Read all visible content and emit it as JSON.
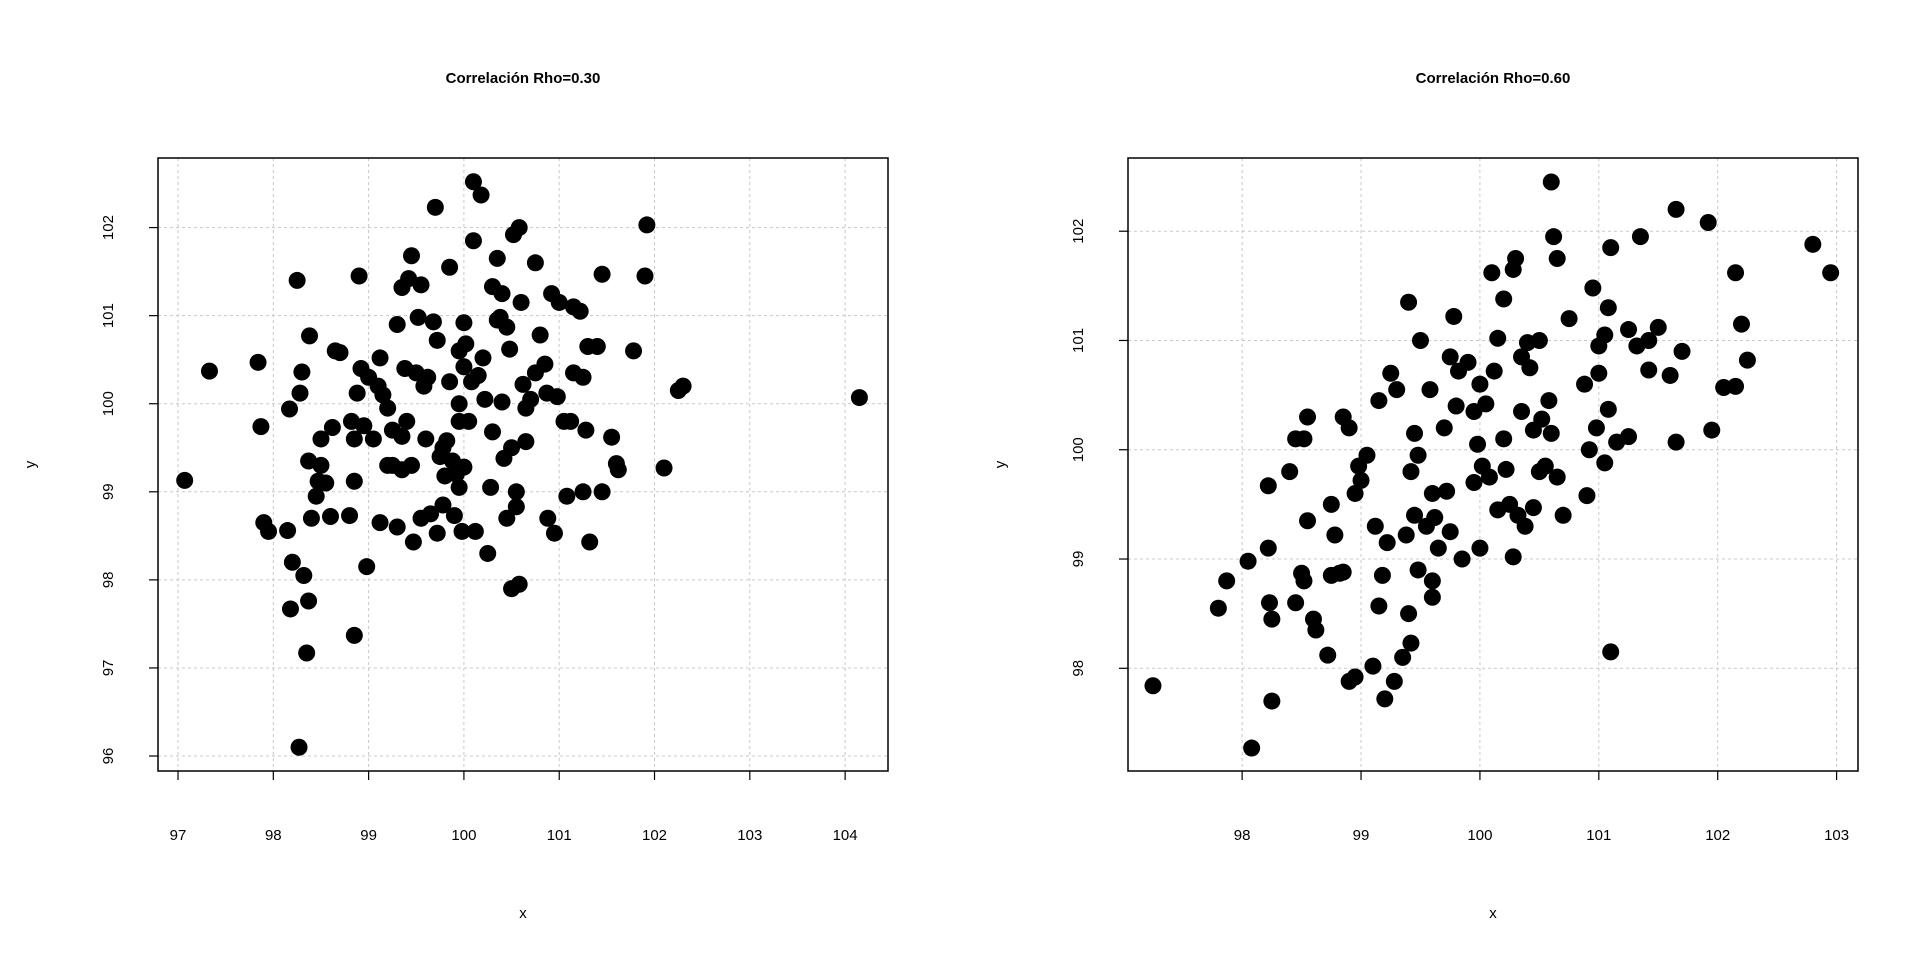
{
  "chart_data": [
    {
      "type": "scatter",
      "title": "Correlación Rho=0.30",
      "x_label": "x",
      "y_label": "y",
      "color": "#000000",
      "grid": true,
      "xlim": [
        96.79,
        104.45
      ],
      "ylim": [
        95.83,
        102.79
      ],
      "xticks": [
        97,
        98,
        99,
        100,
        101,
        102,
        103,
        104
      ],
      "yticks": [
        96,
        97,
        98,
        99,
        100,
        101,
        102
      ],
      "x": [
        97.07,
        97.33,
        97.84,
        97.87,
        97.9,
        97.95,
        98.15,
        98.17,
        98.2,
        98.18,
        98.25,
        98.28,
        98.3,
        98.32,
        98.35,
        98.37,
        98.37,
        98.38,
        98.4,
        98.45,
        98.47,
        98.5,
        98.5,
        98.55,
        98.6,
        98.62,
        98.65,
        98.7,
        98.8,
        98.82,
        98.85,
        98.85,
        98.85,
        98.88,
        98.9,
        98.92,
        98.95,
        98.98,
        99.0,
        99.05,
        99.1,
        99.12,
        99.12,
        99.15,
        99.2,
        99.2,
        99.25,
        99.25,
        99.3,
        99.3,
        99.35,
        99.35,
        99.35,
        99.38,
        99.4,
        99.42,
        99.45,
        99.45,
        99.47,
        99.5,
        99.52,
        99.55,
        99.55,
        99.58,
        99.6,
        99.62,
        99.65,
        99.68,
        99.7,
        99.72,
        99.72,
        99.75,
        99.78,
        99.78,
        99.8,
        99.82,
        99.85,
        99.85,
        99.88,
        99.9,
        99.92,
        99.95,
        99.95,
        99.95,
        99.98,
        100.0,
        100.0,
        100.0,
        100.02,
        100.05,
        100.08,
        100.1,
        100.1,
        100.12,
        100.15,
        100.18,
        100.2,
        100.22,
        100.25,
        100.28,
        100.3,
        100.3,
        100.35,
        100.38,
        100.4,
        100.4,
        100.42,
        100.45,
        100.45,
        100.48,
        100.5,
        100.5,
        100.52,
        100.55,
        100.55,
        100.58,
        100.58,
        100.6,
        100.62,
        100.65,
        100.65,
        100.7,
        100.75,
        100.75,
        100.8,
        100.85,
        100.87,
        100.88,
        100.92,
        100.95,
        100.98,
        101.0,
        101.05,
        101.08,
        101.12,
        101.15,
        101.15,
        101.22,
        101.25,
        101.25,
        101.28,
        101.3,
        101.32,
        101.4,
        101.45,
        101.45,
        101.55,
        101.6,
        101.62,
        101.78,
        101.9,
        101.92,
        102.1,
        102.25,
        102.3,
        104.15,
        98.27,
        99.95,
        100.35
      ],
      "values": [
        99.13,
        100.37,
        100.47,
        99.74,
        98.65,
        98.55,
        98.56,
        99.94,
        98.2,
        97.67,
        101.4,
        100.12,
        100.36,
        98.05,
        97.17,
        97.76,
        99.35,
        100.77,
        98.7,
        98.95,
        99.12,
        99.6,
        99.3,
        99.1,
        98.72,
        99.73,
        100.6,
        100.58,
        98.73,
        99.8,
        99.6,
        97.37,
        99.12,
        100.12,
        101.45,
        100.4,
        99.75,
        98.15,
        100.3,
        99.6,
        100.2,
        100.52,
        98.65,
        100.1,
        99.95,
        99.3,
        99.7,
        99.3,
        98.6,
        100.9,
        101.32,
        99.63,
        99.25,
        100.4,
        99.8,
        101.42,
        101.68,
        99.3,
        98.43,
        100.35,
        100.98,
        98.7,
        101.35,
        100.2,
        99.6,
        100.3,
        98.75,
        100.93,
        102.23,
        98.53,
        100.72,
        99.4,
        98.85,
        99.5,
        99.18,
        99.58,
        101.55,
        100.25,
        99.35,
        98.73,
        99.2,
        100.0,
        100.6,
        99.8,
        98.55,
        100.42,
        100.92,
        99.28,
        100.68,
        99.8,
        100.25,
        102.52,
        101.85,
        98.55,
        100.32,
        102.37,
        100.52,
        100.05,
        98.3,
        99.05,
        101.33,
        99.68,
        101.65,
        100.98,
        100.02,
        101.25,
        99.38,
        98.7,
        100.87,
        100.62,
        97.9,
        99.5,
        101.92,
        98.83,
        99.0,
        97.95,
        102.0,
        101.15,
        100.22,
        99.95,
        99.57,
        100.05,
        100.35,
        101.6,
        100.78,
        100.45,
        100.12,
        98.7,
        101.25,
        98.53,
        100.08,
        101.15,
        99.8,
        98.95,
        99.8,
        101.1,
        100.35,
        101.05,
        100.3,
        99.0,
        99.7,
        100.65,
        98.43,
        100.65,
        101.47,
        99.0,
        99.62,
        99.32,
        99.25,
        100.6,
        101.45,
        102.03,
        99.27,
        100.15,
        100.2,
        100.07,
        96.1,
        99.05,
        100.95
      ]
    },
    {
      "type": "scatter",
      "title": "Correlación Rho=0.60",
      "x_label": "x",
      "y_label": "y",
      "color": "#000000",
      "grid": true,
      "xlim": [
        97.04,
        103.18
      ],
      "ylim": [
        97.06,
        102.67
      ],
      "xticks": [
        98,
        99,
        100,
        101,
        102,
        103
      ],
      "yticks": [
        98,
        99,
        100,
        101,
        102
      ],
      "x": [
        97.25,
        97.8,
        97.87,
        98.05,
        98.08,
        98.25,
        98.22,
        98.23,
        98.25,
        98.22,
        98.4,
        98.45,
        98.45,
        98.5,
        98.52,
        98.52,
        98.55,
        98.55,
        98.6,
        98.62,
        98.72,
        98.75,
        98.75,
        98.78,
        98.82,
        98.85,
        98.85,
        98.9,
        98.9,
        98.95,
        98.95,
        98.98,
        99.0,
        99.05,
        99.1,
        99.12,
        99.15,
        99.15,
        99.18,
        99.2,
        99.22,
        99.25,
        99.28,
        99.3,
        99.35,
        99.38,
        99.4,
        99.4,
        99.42,
        99.42,
        99.45,
        99.45,
        99.48,
        99.48,
        99.5,
        99.55,
        99.58,
        99.6,
        99.6,
        99.6,
        99.62,
        99.65,
        99.7,
        99.72,
        99.75,
        99.75,
        99.78,
        99.8,
        99.82,
        99.85,
        99.9,
        99.95,
        99.95,
        99.98,
        100.0,
        100.0,
        100.02,
        100.05,
        100.08,
        100.1,
        100.12,
        100.15,
        100.15,
        100.2,
        100.2,
        100.22,
        100.25,
        100.28,
        100.28,
        100.3,
        100.32,
        100.35,
        100.35,
        100.38,
        100.4,
        100.42,
        100.45,
        100.45,
        100.5,
        100.5,
        100.52,
        100.55,
        100.58,
        100.6,
        100.6,
        100.62,
        100.65,
        100.65,
        100.7,
        100.75,
        100.88,
        100.9,
        100.92,
        100.95,
        100.98,
        101.0,
        101.0,
        101.05,
        101.05,
        101.08,
        101.08,
        101.1,
        101.1,
        101.15,
        101.25,
        101.25,
        101.32,
        101.35,
        101.42,
        101.42,
        101.5,
        101.6,
        101.65,
        101.65,
        101.7,
        101.92,
        101.95,
        102.05,
        102.15,
        102.15,
        102.2,
        102.25,
        102.8,
        102.95
      ],
      "values": [
        97.84,
        98.55,
        98.8,
        98.98,
        97.27,
        97.7,
        99.67,
        98.6,
        98.45,
        99.1,
        99.8,
        98.6,
        100.1,
        98.87,
        98.8,
        100.1,
        100.3,
        99.35,
        98.45,
        98.35,
        98.12,
        98.85,
        99.5,
        99.22,
        98.87,
        100.3,
        98.88,
        97.88,
        100.2,
        97.92,
        99.6,
        99.85,
        99.72,
        99.95,
        98.02,
        99.3,
        98.57,
        100.45,
        98.85,
        97.72,
        99.15,
        100.7,
        97.88,
        100.55,
        98.1,
        99.22,
        98.5,
        101.35,
        99.8,
        98.23,
        100.15,
        99.4,
        99.95,
        98.9,
        101.0,
        99.3,
        100.55,
        98.65,
        98.8,
        99.6,
        99.38,
        99.1,
        100.2,
        99.62,
        99.25,
        100.85,
        101.22,
        100.4,
        100.72,
        99.0,
        100.8,
        99.7,
        100.35,
        100.05,
        99.1,
        100.6,
        99.85,
        100.42,
        99.75,
        101.62,
        100.72,
        101.02,
        99.45,
        101.38,
        100.1,
        99.82,
        99.5,
        101.65,
        99.02,
        101.75,
        99.4,
        100.35,
        100.85,
        99.3,
        100.98,
        100.75,
        99.47,
        100.18,
        99.8,
        101.0,
        100.28,
        99.85,
        100.45,
        102.45,
        100.15,
        101.95,
        99.75,
        101.75,
        99.4,
        101.2,
        100.6,
        99.58,
        100.0,
        101.48,
        100.2,
        100.7,
        100.95,
        101.05,
        99.88,
        101.3,
        100.37,
        101.85,
        98.15,
        100.07,
        101.1,
        100.12,
        100.95,
        101.95,
        101.0,
        100.73,
        101.12,
        100.68,
        100.07,
        102.2,
        100.9,
        102.08,
        100.18,
        100.57,
        101.62,
        100.58,
        101.15,
        100.82,
        101.88,
        101.62
      ]
    }
  ]
}
